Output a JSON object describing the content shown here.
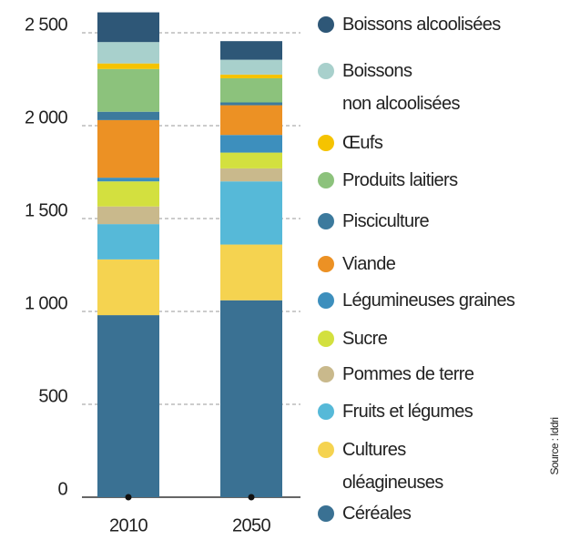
{
  "chart_data": {
    "type": "stacked_bar",
    "categories": [
      "2010",
      "2050"
    ],
    "series": [
      {
        "name": "Céréales",
        "color": "#3a7193",
        "values": [
          980,
          1060
        ]
      },
      {
        "name": "Cultures\noléagineuses",
        "color": "#f5d350",
        "values": [
          300,
          300
        ]
      },
      {
        "name": "Fruits et légumes",
        "color": "#56b9d8",
        "values": [
          190,
          340
        ]
      },
      {
        "name": "Pommes de terre",
        "color": "#c9b98c",
        "values": [
          95,
          70
        ]
      },
      {
        "name": "Sucre",
        "color": "#d3e03f",
        "values": [
          135,
          85
        ]
      },
      {
        "name": "Légumineuses graines",
        "color": "#3d8fbd",
        "values": [
          20,
          95
        ]
      },
      {
        "name": "Viande",
        "color": "#ec9124",
        "values": [
          310,
          160
        ]
      },
      {
        "name": "Pisciculture",
        "color": "#3c7a9d",
        "values": [
          45,
          15
        ]
      },
      {
        "name": "Produits laitiers",
        "color": "#8cc27c",
        "values": [
          230,
          130
        ]
      },
      {
        "name": "Œufs",
        "color": "#f5c300",
        "values": [
          30,
          20
        ]
      },
      {
        "name": "Boissons\nnon alcoolisées",
        "color": "#a8d0cc",
        "values": [
          115,
          80
        ]
      },
      {
        "name": "Boissons alcoolisées",
        "color": "#2e5777",
        "values": [
          160,
          100
        ]
      }
    ],
    "ylim": [
      0,
      2650
    ],
    "yticks": [
      0,
      500,
      {
        "value": 1000,
        "label": "1 000"
      },
      {
        "value": 1500,
        "label": "1 500"
      },
      {
        "value": 2000,
        "label": "2 000"
      },
      {
        "value": 2500,
        "label": "2 500"
      }
    ],
    "grid": true,
    "source": "Source : Iddri"
  }
}
